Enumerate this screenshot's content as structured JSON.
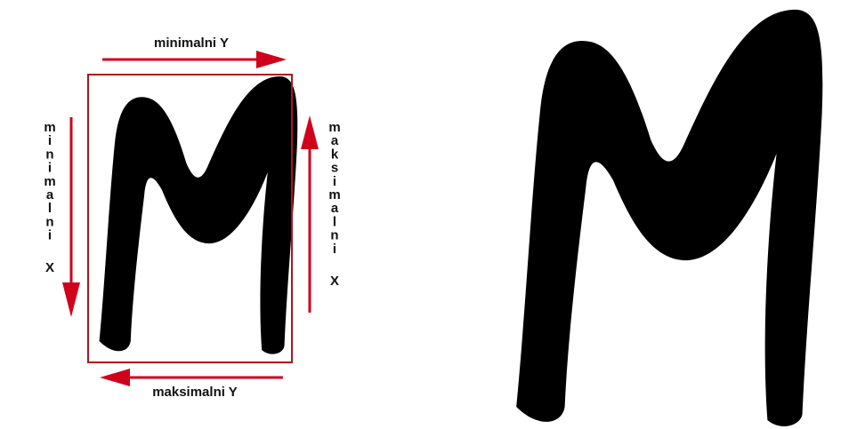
{
  "labels": {
    "top": "minimalni Y",
    "bottom": "maksimalni Y",
    "left": "minimalni X",
    "right": "maksimalni X"
  },
  "colors": {
    "arrow": "#d0021b",
    "box": "#b3121f",
    "glyph": "#000000",
    "text": "#111111"
  }
}
